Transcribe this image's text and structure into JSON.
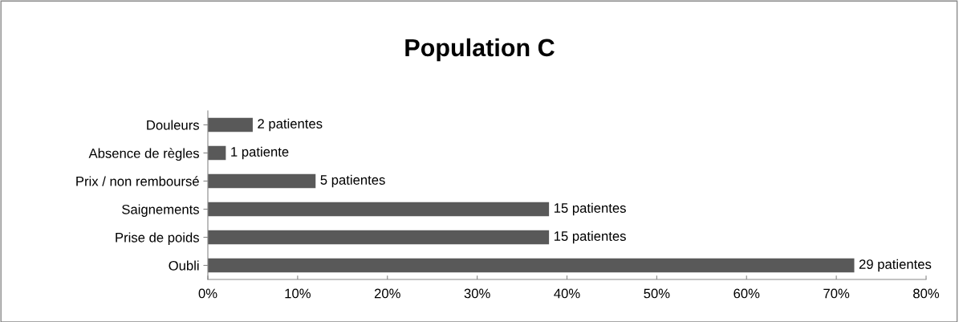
{
  "chart_data": {
    "type": "bar",
    "orientation": "horizontal",
    "title": "Population C",
    "categories": [
      "Douleurs",
      "Absence de règles",
      "Prix / non remboursé",
      "Saignements",
      "Prise de poids",
      "Oubli"
    ],
    "values": [
      5,
      2,
      12,
      38,
      38,
      72
    ],
    "annotations": [
      {
        "text": "2 patientes",
        "x": 5,
        "y": "Douleurs"
      },
      {
        "text": "1 patiente",
        "x": 2,
        "y": "Absence de règles"
      },
      {
        "text": "5 patientes",
        "x": 12,
        "y": "Prix / non remboursé"
      },
      {
        "text": "15 patientes",
        "x": 38,
        "y": "Saignements"
      },
      {
        "text": "15 patientes",
        "x": 38,
        "y": "Prise de poids"
      },
      {
        "text": "29 patientes",
        "x": 72,
        "y": "Oubli"
      }
    ],
    "color": "#595959",
    "xlim": [
      0,
      80
    ],
    "xticks": [
      {
        "value": 0,
        "label": "0%"
      },
      {
        "value": 10,
        "label": "10%"
      },
      {
        "value": 20,
        "label": "20%"
      },
      {
        "value": 30,
        "label": "30%"
      },
      {
        "value": 40,
        "label": "40%"
      },
      {
        "value": 50,
        "label": "50%"
      },
      {
        "value": 60,
        "label": "60%"
      },
      {
        "value": 70,
        "label": "70%"
      },
      {
        "value": 80,
        "label": "80%"
      }
    ],
    "grid": false,
    "legend": false
  }
}
